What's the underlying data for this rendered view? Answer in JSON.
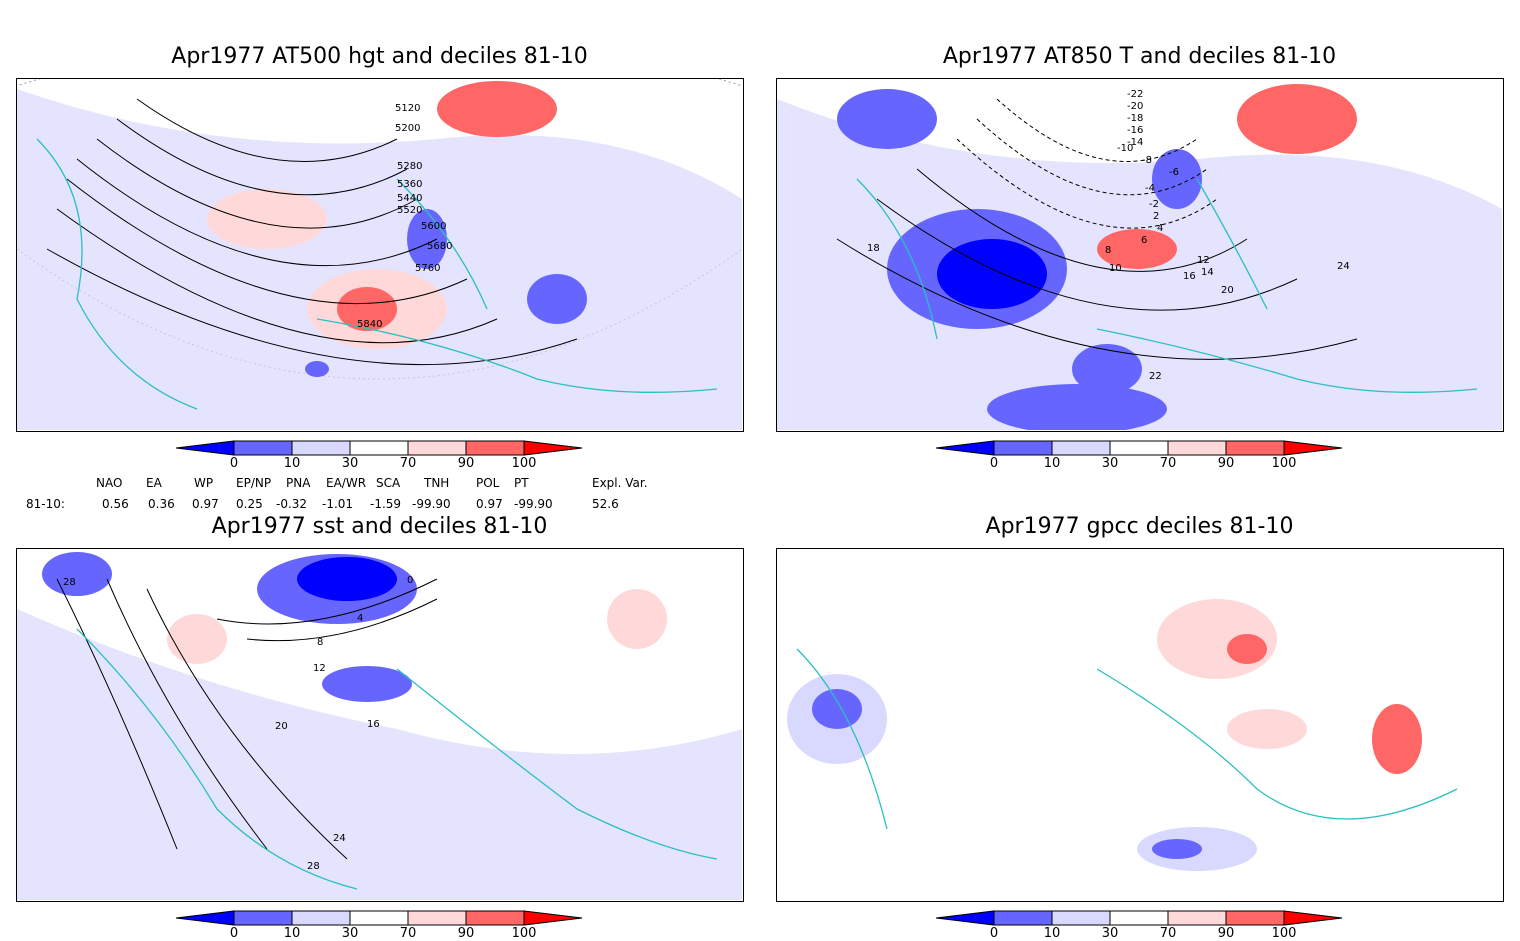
{
  "panels": [
    {
      "id": "p1",
      "title": "Apr1977 AT500 hgt and deciles 81-10",
      "contour_labels": [
        "5120",
        "5200",
        "5280",
        "5360",
        "5440",
        "5520",
        "5600",
        "5680",
        "5760",
        "5840"
      ]
    },
    {
      "id": "p2",
      "title": "Apr1977 AT850 T and deciles 81-10",
      "contour_labels": [
        "-22",
        "-20",
        "-18",
        "-16",
        "-14",
        "-10",
        "-8",
        "-6",
        "-4",
        "-2",
        "2",
        "4",
        "6",
        "8",
        "10",
        "12",
        "14",
        "16",
        "18",
        "20",
        "22",
        "24"
      ]
    },
    {
      "id": "p3",
      "title": "Apr1977 sst and deciles 81-10",
      "contour_labels": [
        "28",
        "0",
        "4",
        "8",
        "12",
        "16",
        "20",
        "24",
        "28"
      ]
    },
    {
      "id": "p4",
      "title": "Apr1977 gpcc deciles 81-10",
      "contour_labels": []
    }
  ],
  "colorbar": {
    "tick_labels": [
      "0",
      "10",
      "30",
      "70",
      "90",
      "100"
    ],
    "colors": [
      "#0000ff",
      "#6666ff",
      "#d9d9ff",
      "#ffffff",
      "#ffd9d9",
      "#ff6666",
      "#ff0000"
    ]
  },
  "indices": {
    "header": [
      "NAO",
      "EA",
      "WP",
      "EP/NP",
      "PNA",
      "EA/WR",
      "SCA",
      "TNH",
      "POL",
      "PT",
      "Expl. Var."
    ],
    "row_label": "81-10:",
    "values": [
      "0.56",
      "0.36",
      "0.97",
      "0.25",
      "-0.32",
      "-1.01",
      "-1.59",
      "-99.90",
      "0.97",
      "-99.90",
      "52.6"
    ]
  }
}
